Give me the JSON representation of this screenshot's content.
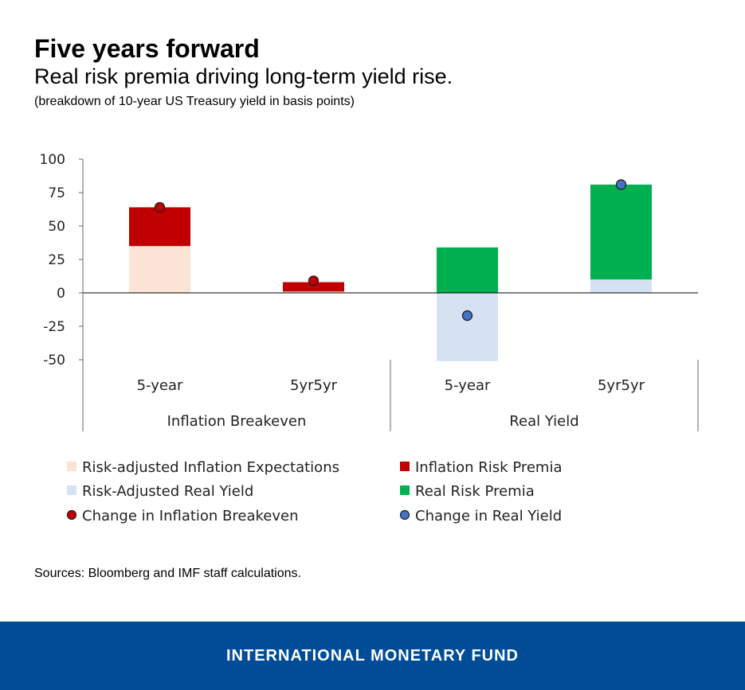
{
  "header": {
    "title": "Five years forward",
    "subtitle": "Real risk premia driving long-term yield rise.",
    "note": "(breakdown of 10-year US Treasury yield in basis points)"
  },
  "source": "Sources: Bloomberg and IMF staff calculations.",
  "footer": {
    "org": "INTERNATIONAL MONETARY FUND"
  },
  "chart_data": {
    "type": "bar",
    "stacked": true,
    "ylim": [
      -50,
      100
    ],
    "yticks": [
      100,
      75,
      50,
      25,
      0,
      -25,
      -50
    ],
    "categories": [
      "5-year",
      "5yr5yr",
      "5-year",
      "5yr5yr"
    ],
    "groups": [
      {
        "label": "Inflation Breakeven",
        "categories": [
          0,
          1
        ]
      },
      {
        "label": "Real Yield",
        "categories": [
          2,
          3
        ]
      }
    ],
    "series": [
      {
        "name": "Risk-adjusted Inflation Expectations",
        "kind": "bar",
        "color": "#fbe3d5",
        "values": [
          35,
          1,
          0,
          0
        ]
      },
      {
        "name": "Inflation Risk Premia",
        "kind": "bar",
        "color": "#c00000",
        "values": [
          29,
          7,
          0,
          0
        ]
      },
      {
        "name": "Risk-Adjusted Real Yield",
        "kind": "bar",
        "color": "#d6e2f2",
        "values": [
          0,
          0,
          -51,
          10
        ]
      },
      {
        "name": "Real Risk Premia",
        "kind": "bar",
        "color": "#00b050",
        "values": [
          0,
          0,
          34,
          71
        ]
      },
      {
        "name": "Change in Inflation Breakeven",
        "kind": "point",
        "color": "#c00000",
        "values": [
          64,
          9,
          null,
          null
        ]
      },
      {
        "name": "Change in Real Yield",
        "kind": "point",
        "color": "#4472c4",
        "values": [
          null,
          null,
          -17,
          81
        ]
      }
    ],
    "legend": {
      "placement": "bottom",
      "order": [
        "Risk-adjusted Inflation Expectations",
        "Inflation Risk Premia",
        "Risk-Adjusted Real Yield",
        "Real Risk Premia",
        "Change in Inflation Breakeven",
        "Change in Real Yield"
      ]
    },
    "grid": false
  }
}
